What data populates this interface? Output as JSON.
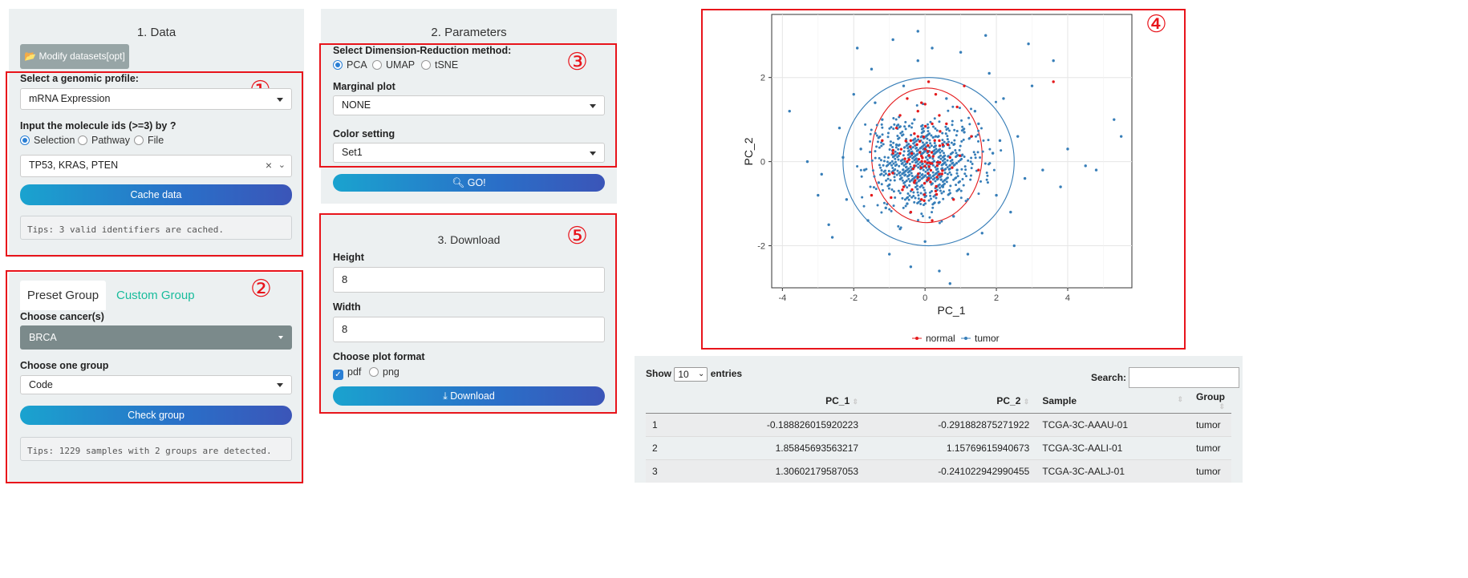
{
  "data_panel": {
    "title": "1. Data",
    "modify_button": "Modify datasets[opt]",
    "profile_label": "Select a genomic profile:",
    "profile_value": "mRNA Expression",
    "molecule_label": "Input the molecule ids (>=3) by ?",
    "molecule_options": [
      "Selection",
      "Pathway",
      "File"
    ],
    "molecule_value": "TP53, KRAS, PTEN",
    "cache_button": "Cache data",
    "tips": "Tips: 3 valid identifiers are cached."
  },
  "group_panel": {
    "tab_preset": "Preset Group",
    "tab_custom": "Custom Group",
    "cancer_label": "Choose cancer(s)",
    "cancer_value": "BRCA",
    "group_label": "Choose one group",
    "group_value": "Code",
    "check_button": "Check group",
    "tips": "Tips: 1229 samples with 2 groups are detected."
  },
  "params_panel": {
    "title": "2. Parameters",
    "method_label": "Select Dimension-Reduction method:",
    "methods": [
      "PCA",
      "UMAP",
      "tSNE"
    ],
    "marginal_label": "Marginal plot",
    "marginal_value": "NONE",
    "color_label": "Color setting",
    "color_value": "Set1",
    "go_button": "GO!"
  },
  "download_panel": {
    "title": "3. Download",
    "height_label": "Height",
    "height_value": "8",
    "width_label": "Width",
    "width_value": "8",
    "format_label": "Choose plot format",
    "formats": [
      "pdf",
      "png"
    ],
    "download_button": "Download"
  },
  "annotations": [
    "①",
    "②",
    "③",
    "④",
    "⑤"
  ],
  "chart_data": {
    "type": "scatter",
    "xlabel": "PC_1",
    "ylabel": "PC_2",
    "xlim": [
      -4.3,
      5.8
    ],
    "ylim": [
      -3.0,
      3.5
    ],
    "xticks": [
      "-4",
      "-2",
      "0",
      "2",
      "4"
    ],
    "yticks": [
      "-2",
      "0",
      "2"
    ],
    "grid": true,
    "legend_position": "bottom",
    "series": [
      {
        "name": "normal",
        "color": "#e41a1c",
        "points": [
          [
            -0.5,
            1.5
          ],
          [
            -0.2,
            1.2
          ],
          [
            0.1,
            1.9
          ],
          [
            0.3,
            1.6
          ],
          [
            -0.8,
            0.8
          ],
          [
            -0.4,
            0.5
          ],
          [
            0.2,
            0.9
          ],
          [
            0.5,
            0.4
          ],
          [
            -0.9,
            0.2
          ],
          [
            -0.3,
            -0.1
          ],
          [
            0.0,
            0.3
          ],
          [
            0.4,
            -0.3
          ],
          [
            -0.6,
            -0.6
          ],
          [
            -0.1,
            -0.9
          ],
          [
            0.3,
            -0.7
          ],
          [
            -1.0,
            -0.3
          ],
          [
            0.7,
            0.1
          ],
          [
            -0.2,
            0.6
          ],
          [
            0.1,
            -0.4
          ],
          [
            -0.7,
            1.1
          ],
          [
            0.9,
            1.3
          ],
          [
            1.1,
            1.8
          ],
          [
            0.6,
            0.9
          ],
          [
            -0.4,
            -1.2
          ],
          [
            0.2,
            -1.4
          ],
          [
            -1.2,
            0.5
          ],
          [
            0.8,
            -0.9
          ],
          [
            1.3,
            0.6
          ],
          [
            -0.5,
            0.0
          ],
          [
            0.0,
            0.0
          ],
          [
            -0.3,
            -0.5
          ],
          [
            0.4,
            1.1
          ],
          [
            3.6,
            1.9
          ],
          [
            -1.5,
            -0.8
          ],
          [
            1.5,
            -0.2
          ],
          [
            -0.1,
            1.4
          ]
        ]
      },
      {
        "name": "tumor",
        "color": "#377eb8",
        "points": [
          [
            -3.8,
            1.2
          ],
          [
            -3.3,
            0.0
          ],
          [
            -2.9,
            -0.3
          ],
          [
            -2.6,
            -1.8
          ],
          [
            -2.4,
            0.8
          ],
          [
            -2.2,
            -0.9
          ],
          [
            -2.0,
            1.6
          ],
          [
            -1.8,
            0.3
          ],
          [
            -1.6,
            -1.4
          ],
          [
            -1.5,
            2.2
          ],
          [
            -1.3,
            -0.5
          ],
          [
            -1.2,
            1.0
          ],
          [
            -1.0,
            -2.2
          ],
          [
            -0.9,
            2.9
          ],
          [
            -0.7,
            -1.6
          ],
          [
            -0.6,
            1.8
          ],
          [
            -0.4,
            -2.5
          ],
          [
            -0.2,
            2.4
          ],
          [
            0.0,
            -1.9
          ],
          [
            0.2,
            2.7
          ],
          [
            0.4,
            -2.6
          ],
          [
            0.6,
            1.5
          ],
          [
            0.8,
            -1.3
          ],
          [
            1.0,
            2.6
          ],
          [
            1.2,
            -2.2
          ],
          [
            1.4,
            1.2
          ],
          [
            1.6,
            -1.7
          ],
          [
            1.8,
            2.1
          ],
          [
            2.0,
            -0.8
          ],
          [
            2.2,
            1.5
          ],
          [
            2.4,
            -1.2
          ],
          [
            2.6,
            0.6
          ],
          [
            2.8,
            -0.4
          ],
          [
            3.0,
            1.8
          ],
          [
            3.3,
            -0.2
          ],
          [
            3.6,
            2.4
          ],
          [
            4.0,
            0.3
          ],
          [
            4.5,
            -0.1
          ],
          [
            4.8,
            -0.2
          ],
          [
            5.3,
            1.0
          ],
          [
            5.5,
            0.6
          ],
          [
            -1.7,
            -0.2
          ],
          [
            -0.8,
            0.4
          ],
          [
            0.5,
            -0.6
          ],
          [
            1.1,
            0.7
          ],
          [
            -0.3,
            1.0
          ],
          [
            1.9,
            0.2
          ],
          [
            -2.3,
            0.1
          ],
          [
            2.5,
            -2.0
          ],
          [
            -0.5,
            -1.0
          ],
          [
            0.9,
            -0.2
          ],
          [
            1.5,
            0.9
          ],
          [
            -1.1,
            -1.1
          ],
          [
            0.3,
            0.6
          ],
          [
            -1.4,
            1.4
          ],
          [
            2.1,
            0.5
          ],
          [
            -3.0,
            -0.8
          ],
          [
            3.8,
            -0.6
          ],
          [
            -0.2,
            3.1
          ],
          [
            1.7,
            3.0
          ],
          [
            -1.9,
            2.7
          ],
          [
            0.7,
            -2.9
          ],
          [
            2.9,
            2.8
          ],
          [
            -2.7,
            -1.5
          ]
        ]
      }
    ]
  },
  "table": {
    "show_label": "Show",
    "length_value": "10",
    "entries_label": "entries",
    "search_label": "Search:",
    "columns": [
      "",
      "PC_1",
      "PC_2",
      "Sample",
      "Group"
    ],
    "rows": [
      [
        "1",
        "-0.188826015920223",
        "-0.291882875271922",
        "TCGA-3C-AAAU-01",
        "tumor"
      ],
      [
        "2",
        "1.85845693563217",
        "1.15769615940673",
        "TCGA-3C-AALI-01",
        "tumor"
      ],
      [
        "3",
        "1.30602179587053",
        "-0.241022942990455",
        "TCGA-3C-AALJ-01",
        "tumor"
      ]
    ]
  }
}
